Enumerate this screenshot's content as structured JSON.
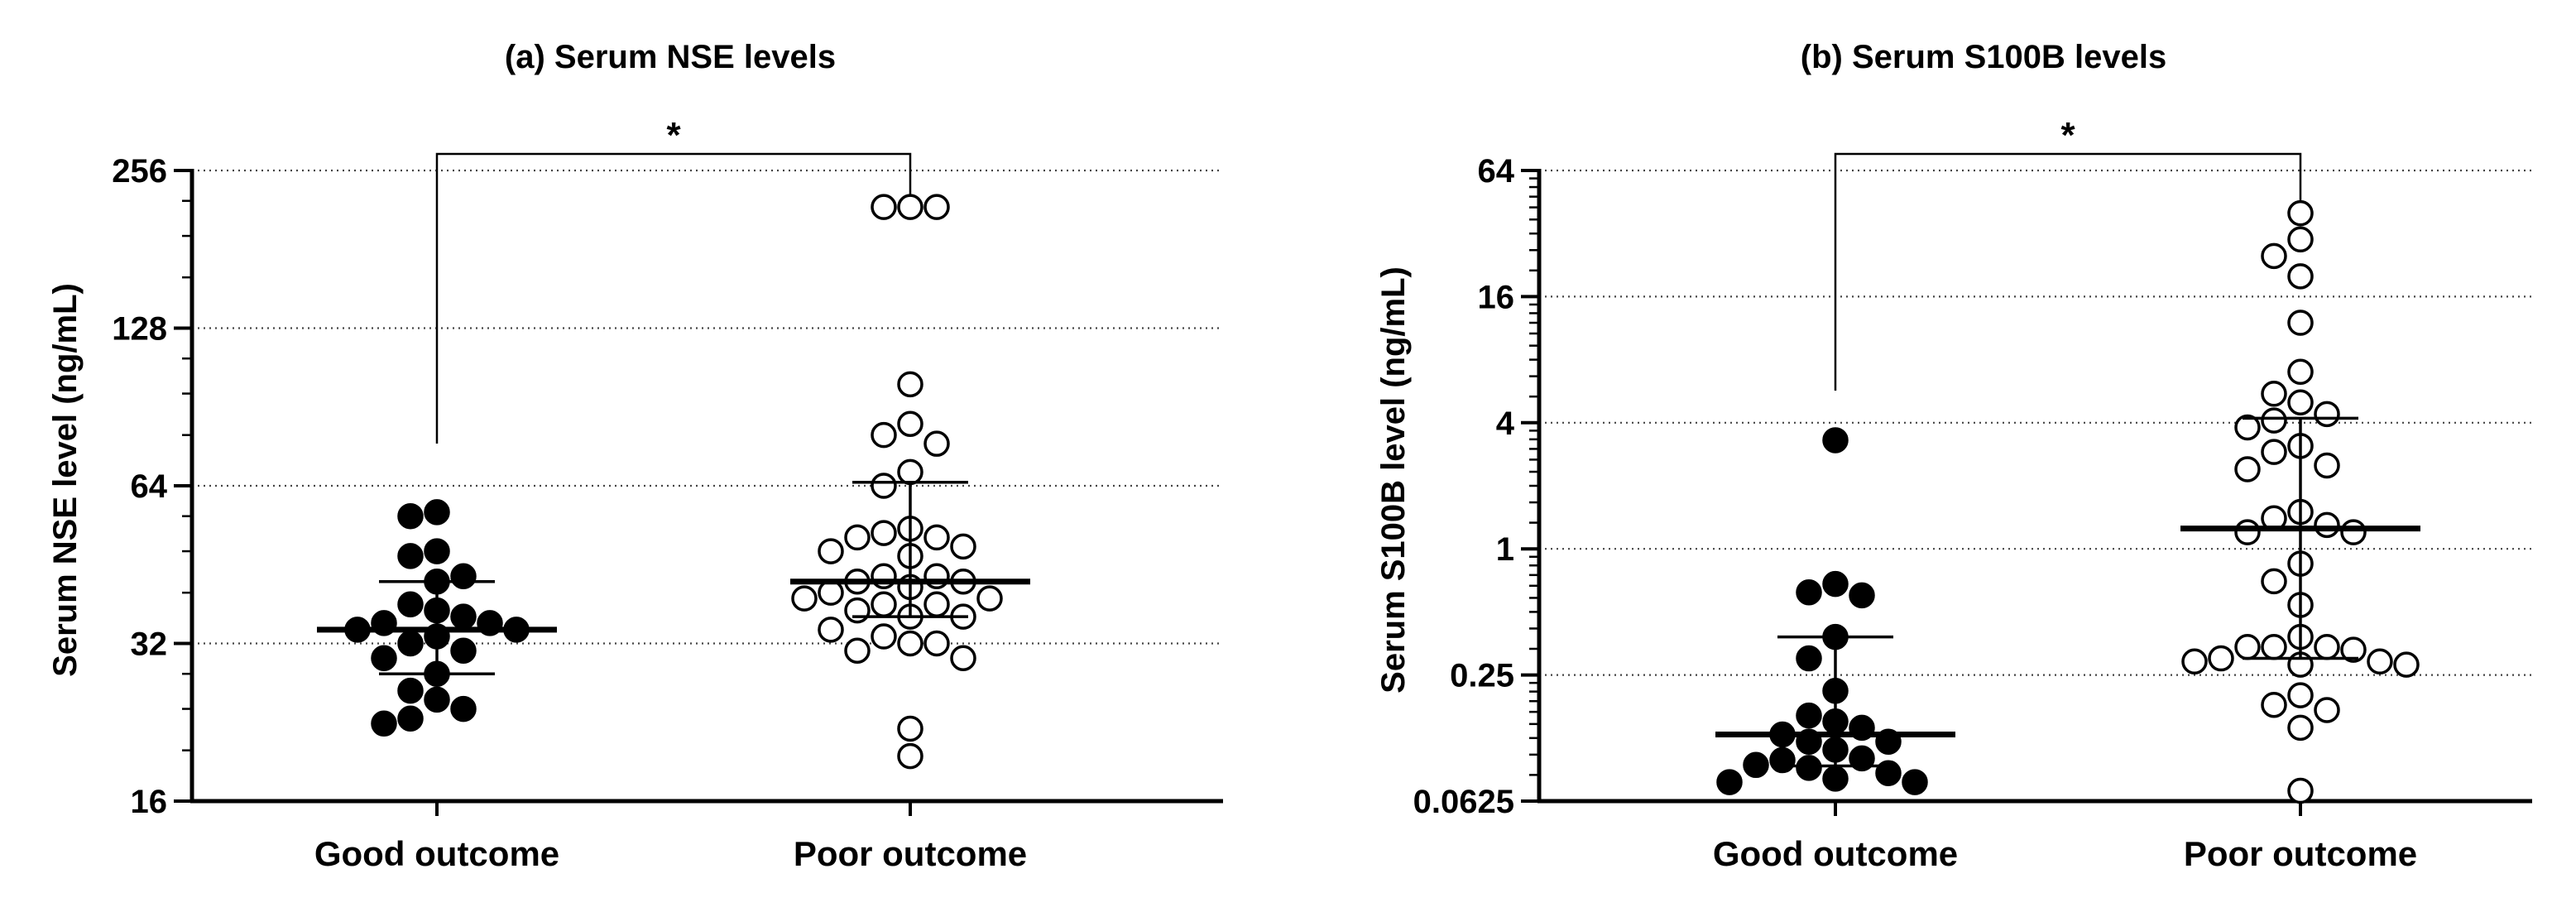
{
  "chart_data": [
    {
      "type": "scatter",
      "title": "(a) Serum NSE levels",
      "xlabel": "",
      "ylabel": "Serum NSE level (ng/mL)",
      "yscale": "log2",
      "ylim": [
        16,
        256
      ],
      "yticks": [
        16,
        32,
        64,
        128,
        256
      ],
      "ytick_labels": [
        "16",
        "32",
        "64",
        "128",
        "256"
      ],
      "grid": "horizontal-dotted",
      "categories": [
        "Good outcome",
        "Poor outcome"
      ],
      "significance": "*",
      "series": [
        {
          "category": "Good outcome",
          "marker": "filled-circle",
          "values": [
            57,
            56,
            48,
            47,
            43,
            42,
            38,
            37,
            36,
            35,
            35,
            34,
            34,
            33,
            32,
            31,
            30,
            28,
            26,
            25,
            24,
            23,
            22.5
          ],
          "median": 34,
          "iqr": [
            28,
            42
          ]
        },
        {
          "category": "Poor outcome",
          "marker": "open-circle",
          "values": [
            218,
            218,
            218,
            100,
            84,
            80,
            77,
            68,
            64,
            53,
            52,
            51,
            51,
            49,
            48,
            47,
            43,
            43,
            42,
            42,
            41,
            40,
            39,
            39,
            38,
            38,
            37,
            36,
            36,
            34,
            33,
            32,
            32,
            31,
            30,
            22,
            19.5
          ],
          "median": 42,
          "iqr": [
            36,
            65
          ]
        }
      ]
    },
    {
      "type": "scatter",
      "title": "(b) Serum S100B levels",
      "xlabel": "",
      "ylabel": "Serum S100B level (ng/mL)",
      "yscale": "log2",
      "ylim": [
        0.0625,
        64
      ],
      "yticks": [
        0.0625,
        0.25,
        1,
        4,
        16,
        64
      ],
      "ytick_labels": [
        "0.0625",
        "0.25",
        "1",
        "4",
        "16",
        "64"
      ],
      "grid": "horizontal-dotted",
      "categories": [
        "Good outcome",
        "Poor outcome"
      ],
      "significance": "*",
      "series": [
        {
          "category": "Good outcome",
          "marker": "filled-circle",
          "values": [
            3.3,
            0.68,
            0.62,
            0.6,
            0.38,
            0.3,
            0.21,
            0.16,
            0.15,
            0.14,
            0.13,
            0.12,
            0.12,
            0.11,
            0.1,
            0.098,
            0.093,
            0.09,
            0.085,
            0.08,
            0.077,
            0.077
          ],
          "median": 0.13,
          "iqr": [
            0.092,
            0.38
          ]
        },
        {
          "category": "Poor outcome",
          "marker": "open-circle",
          "values": [
            40,
            30,
            25,
            20,
            12,
            7,
            5.5,
            5,
            4.4,
            4.1,
            3.8,
            3.1,
            2.9,
            2.5,
            2.4,
            1.5,
            1.4,
            1.3,
            1.2,
            1.2,
            0.85,
            0.7,
            0.54,
            0.38,
            0.34,
            0.34,
            0.34,
            0.33,
            0.3,
            0.29,
            0.29,
            0.28,
            0.28,
            0.2,
            0.18,
            0.17,
            0.14,
            0.07
          ],
          "median": 1.25,
          "iqr": [
            0.3,
            4.2
          ]
        }
      ]
    }
  ]
}
